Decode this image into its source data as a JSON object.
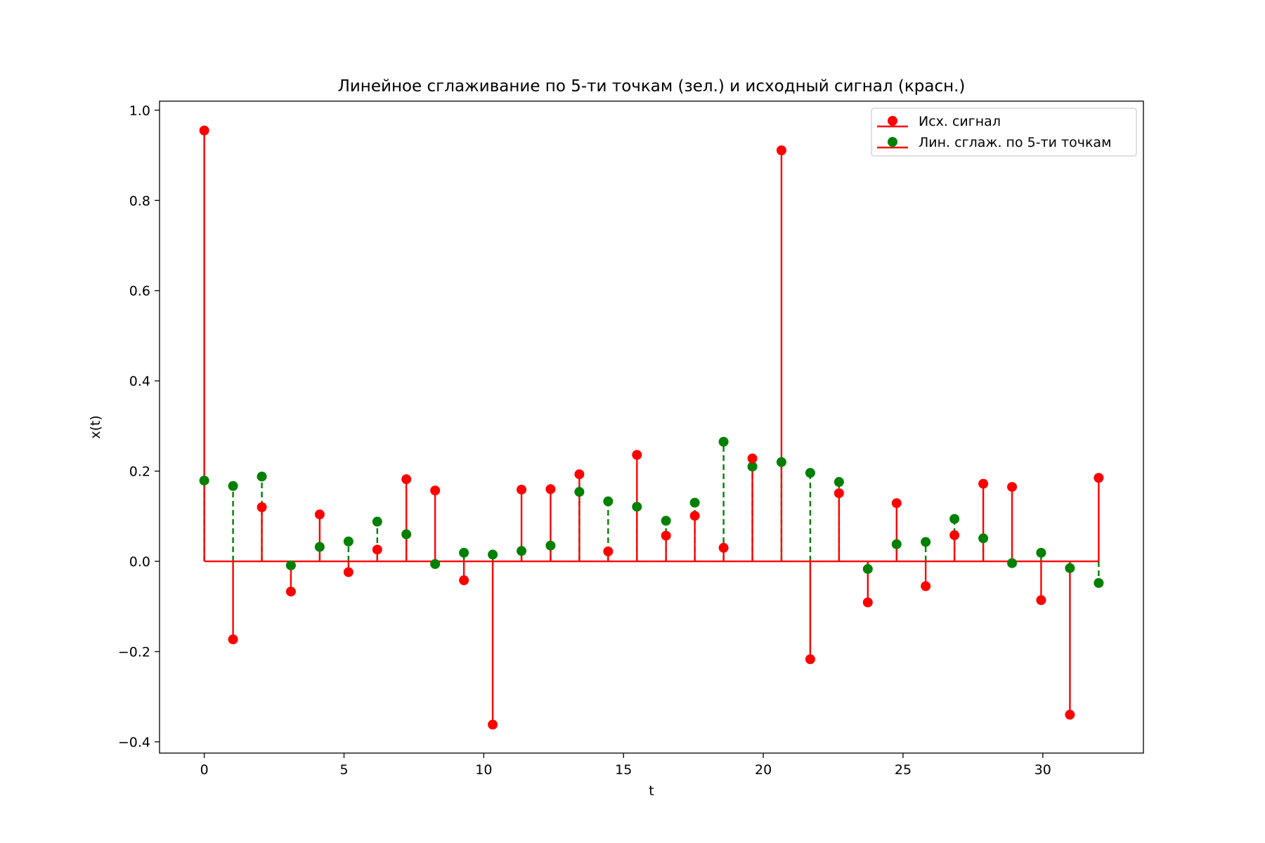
{
  "chart_data": {
    "type": "stem",
    "title": "Линейное сглаживание по 5-ти точкам (зел.) и исходный сигнал (красн.)",
    "xlabel": "t",
    "ylabel": "x(t)",
    "xlim": [
      -1.6,
      33.6
    ],
    "ylim": [
      -0.425,
      1.02
    ],
    "xticks": [
      0,
      5,
      10,
      15,
      20,
      25,
      30
    ],
    "yticks": [
      -0.4,
      -0.2,
      0.0,
      0.2,
      0.4,
      0.6,
      0.8,
      1.0
    ],
    "ytick_labels": [
      "−0.4",
      "−0.2",
      "0.0",
      "0.2",
      "0.4",
      "0.6",
      "0.8",
      "1.0"
    ],
    "legend_position": "upper right",
    "x": [
      0,
      1.03,
      2.06,
      3.1,
      4.13,
      5.16,
      6.19,
      7.23,
      8.26,
      9.29,
      10.32,
      11.35,
      12.39,
      13.42,
      14.45,
      15.48,
      16.52,
      17.55,
      18.58,
      19.61,
      20.65,
      21.68,
      22.71,
      23.74,
      24.77,
      25.81,
      26.84,
      27.87,
      28.9,
      29.94,
      30.97,
      32
    ],
    "series": [
      {
        "name": "Исх. сигнал",
        "color": "#ff0000",
        "linestyle": "solid",
        "values": [
          0.955,
          -0.173,
          0.12,
          -0.067,
          0.104,
          -0.024,
          0.026,
          0.182,
          0.157,
          -0.042,
          -0.362,
          0.159,
          0.16,
          0.193,
          0.022,
          0.236,
          0.057,
          0.101,
          0.03,
          0.228,
          0.911,
          -0.217,
          0.151,
          -0.091,
          0.129,
          -0.055,
          0.058,
          0.172,
          0.165,
          -0.086,
          -0.34,
          0.185
        ]
      },
      {
        "name": "Лин. сглаж. по 5-ти точкам",
        "color": "#008000",
        "linestyle": "dashed",
        "values": [
          0.179,
          0.167,
          0.188,
          -0.009,
          0.032,
          0.044,
          0.088,
          0.06,
          -0.006,
          0.019,
          0.015,
          0.023,
          0.035,
          0.154,
          0.133,
          0.121,
          0.09,
          0.13,
          0.265,
          0.21,
          0.22,
          0.196,
          0.176,
          -0.017,
          0.038,
          0.043,
          0.094,
          0.051,
          -0.004,
          0.019,
          -0.015,
          -0.048
        ]
      }
    ],
    "baseline_color": "#ff0000"
  }
}
